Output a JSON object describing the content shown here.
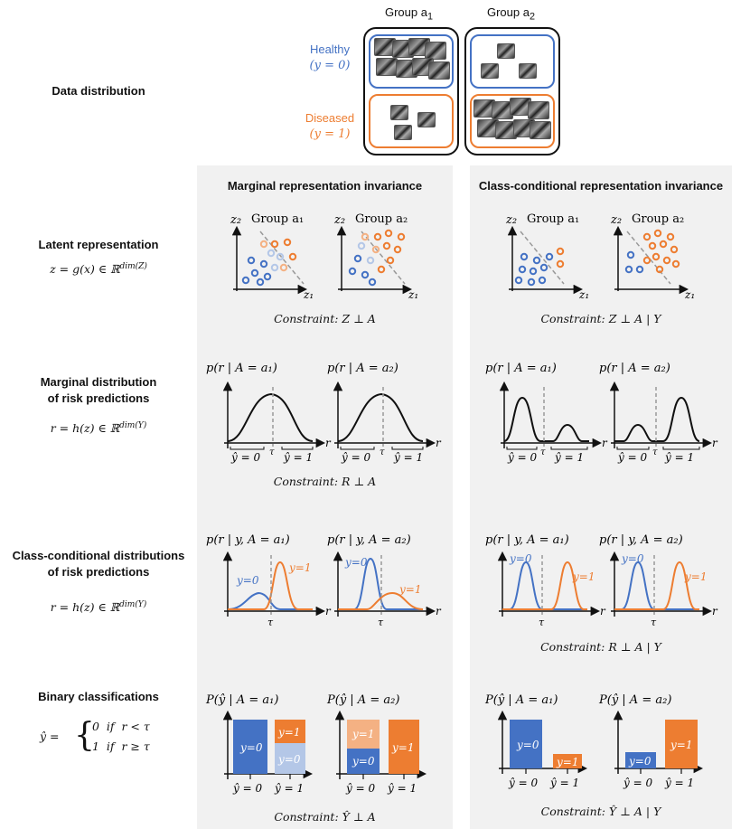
{
  "data_distribution": {
    "row_label": "Data distribution",
    "group_a1": "Group a",
    "group_a1_sub": "1",
    "group_a2": "Group a",
    "group_a2_sub": "2",
    "healthy_label": "Healthy",
    "healthy_y": "(y = 0)",
    "diseased_label": "Diseased",
    "diseased_y": "(y = 1)"
  },
  "rows": {
    "latent": {
      "label": "Latent representation",
      "formula": "z = g(x) ∈ ℝ",
      "formula_sup": "dim(Z)"
    },
    "marginal": {
      "label_line1": "Marginal distribution",
      "label_line2": "of risk predictions",
      "formula": "r = h(z) ∈ ℝ",
      "formula_sup": "dim(Y)"
    },
    "classcond": {
      "label_line1": "Class-conditional distributions",
      "label_line2": "of risk predictions",
      "formula": "r = h(z) ∈ ℝ",
      "formula_sup": "dim(Y)"
    },
    "binary": {
      "label": "Binary classifications",
      "yhat": "ŷ =",
      "case1": "0  if  r < τ",
      "case2": "1  if  r ≥ τ"
    }
  },
  "columns": {
    "left_title": "Marginal representation invariance",
    "right_title": "Class-conditional representation invariance"
  },
  "plot_text": {
    "group_a1": "Group a₁",
    "group_a2": "Group a₂",
    "z1": "z₁",
    "z2": "z₂",
    "p_marg_a1": "p(r | A = a₁)",
    "p_marg_a2": "p(r | A = a₂)",
    "p_cond_a1": "p(r | y, A = a₁)",
    "p_cond_a2": "p(r | y, A = a₂)",
    "P_a1": "P(ŷ | A = a₁)",
    "P_a2": "P(ŷ | A = a₂)",
    "r": "r",
    "tau": "τ",
    "yhat0": "ŷ = 0",
    "yhat1": "ŷ = 1",
    "y0": "y=0",
    "y1": "y=1"
  },
  "constraints": {
    "latent_left": "Constraint: Z ⊥ A",
    "latent_right": "Constraint: Z ⊥ A | Y",
    "marginal_left": "Constraint: R ⊥ A",
    "classcond_right": "Constraint: R ⊥ A | Y",
    "binary_left": "Constraint: Ŷ ⊥ A",
    "binary_right": "Constraint: Ŷ ⊥ A | Y"
  },
  "colors": {
    "blue": "#4472c4",
    "orange": "#ed7d31",
    "light_blue": "#b4c7e7",
    "light_orange": "#f4b183",
    "panel": "#f1f1f1",
    "dashed": "#999999"
  }
}
